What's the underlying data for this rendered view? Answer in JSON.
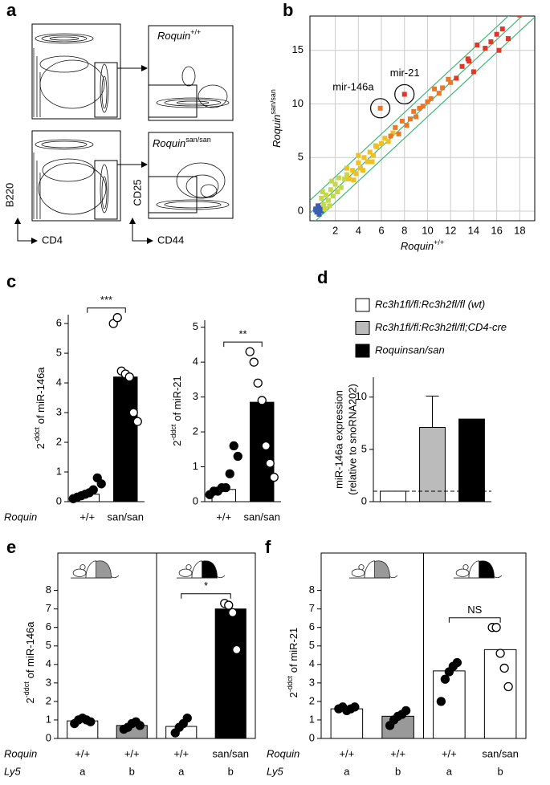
{
  "panel_labels": [
    "a",
    "b",
    "c",
    "d",
    "e",
    "f"
  ],
  "flow": {
    "top_label": {
      "text": "Roquin",
      "sup": "+/+"
    },
    "bottom_label": {
      "text": "Roquin",
      "sup": "san/san"
    },
    "y1": "B220",
    "x1": "CD4",
    "y2": "CD25",
    "x2": "CD44"
  },
  "chart_data": [
    {
      "type": "scatter",
      "xlabel": {
        "text": "Roquin",
        "sup": "+/+"
      },
      "ylabel": {
        "text": "Roquin",
        "sup": "san/san"
      },
      "xlim": [
        -0.2,
        19.3
      ],
      "ylim": [
        -0.9,
        18.2
      ],
      "xticks": [
        2,
        4,
        6,
        8,
        10,
        12,
        14,
        16,
        18
      ],
      "yticks": [
        0,
        5,
        10,
        15
      ],
      "grid": true,
      "series": [
        {
          "color": "#3a5fb0",
          "x": [
            0.3,
            0.5,
            0.6,
            0.4,
            0.7,
            0.5,
            0.8,
            0.3
          ],
          "y": [
            0.2,
            0.0,
            -0.3,
            -0.1,
            0.3,
            0.5,
            0.0,
            0.1
          ]
        },
        {
          "color": "#c4d84a",
          "x": [
            0.8,
            1.0,
            1.2,
            1.4,
            1.6,
            1.8,
            2.0,
            2.2,
            2.5,
            2.8,
            3.0,
            1.1,
            1.5,
            2.3,
            0.9,
            1.7
          ],
          "y": [
            1.2,
            0.6,
            1.5,
            1.0,
            2.0,
            1.4,
            2.5,
            1.8,
            2.2,
            3.0,
            3.4,
            0.2,
            0.5,
            3.1,
            1.8,
            2.8
          ]
        },
        {
          "color": "#f0c020",
          "x": [
            3.2,
            3.5,
            3.8,
            4.0,
            4.2,
            4.5,
            4.8,
            5.0,
            5.3,
            5.6,
            6.0,
            6.3,
            3.6,
            4.4,
            5.2,
            6.6,
            7.0,
            3.0,
            4.0,
            5.5
          ],
          "y": [
            3.0,
            3.8,
            3.5,
            4.5,
            4.0,
            5.0,
            4.6,
            5.5,
            5.2,
            6.0,
            6.3,
            6.8,
            2.9,
            3.8,
            4.6,
            6.5,
            7.3,
            4.0,
            5.2,
            6.1
          ]
        },
        {
          "color": "#e8782a",
          "x": [
            6.8,
            7.2,
            7.5,
            7.8,
            8.2,
            8.5,
            8.8,
            9.0,
            9.3,
            9.6,
            10.0,
            10.3,
            10.6,
            11.0,
            11.3,
            11.8,
            12.0,
            5.9
          ],
          "y": [
            7.0,
            7.8,
            7.2,
            8.4,
            8.0,
            8.6,
            9.3,
            8.8,
            9.6,
            9.8,
            10.2,
            10.5,
            11.4,
            11.0,
            11.5,
            12.3,
            12.0,
            9.6
          ]
        },
        {
          "color": "#e03828",
          "x": [
            8.0,
            12.5,
            13.0,
            13.5,
            14.0,
            14.3,
            15.0,
            15.5,
            16.0,
            16.2,
            16.5,
            17.0,
            18.0,
            13.6
          ],
          "y": [
            10.9,
            12.4,
            13.5,
            14.2,
            13.0,
            15.5,
            15.2,
            15.8,
            16.5,
            15.0,
            17.0,
            16.1,
            18.3,
            14.0
          ]
        }
      ],
      "guide_color": "#3cb878",
      "annotations": [
        {
          "text": "mir-146a",
          "x": 5.9,
          "y": 9.6
        },
        {
          "text": "mir-21",
          "x": 8.0,
          "y": 10.9
        }
      ]
    },
    {
      "type": "bar",
      "ylabel": {
        "base": "2",
        "sup": "-ddct",
        "text": "of miR-146a"
      },
      "ylim": [
        0,
        6.3
      ],
      "yticks": [
        0,
        1,
        2,
        3,
        4,
        5,
        6
      ],
      "values": [
        0.25,
        4.2
      ],
      "colors": [
        "#ffffff",
        "#000000"
      ],
      "points": [
        [
          0.1,
          0.15,
          0.2,
          0.25,
          0.3,
          0.4,
          0.8,
          0.6
        ],
        [
          6.0,
          6.2,
          4.4,
          4.3,
          4.2,
          3.0,
          2.7
        ]
      ],
      "point_colors": [
        "#000000",
        "#ffffff"
      ],
      "significance": "***",
      "rows": [
        {
          "label": "Roquin",
          "values": [
            "+/+",
            "san/san"
          ]
        }
      ]
    },
    {
      "type": "bar",
      "ylabel": {
        "base": "2",
        "sup": "-ddct",
        "text": "of miR-21"
      },
      "ylim": [
        0,
        5.2
      ],
      "yticks": [
        0,
        1,
        2,
        3,
        4,
        5
      ],
      "values": [
        0.35,
        2.85
      ],
      "colors": [
        "#ffffff",
        "#000000"
      ],
      "points": [
        [
          0.2,
          0.3,
          0.3,
          0.4,
          0.4,
          0.8,
          1.6,
          1.3
        ],
        [
          4.3,
          4.0,
          3.4,
          2.9,
          1.6,
          1.1,
          0.7
        ]
      ],
      "point_colors": [
        "#000000",
        "#ffffff"
      ],
      "significance": "**",
      "rows": [
        {
          "values": [
            "+/+",
            "san/san"
          ]
        }
      ]
    },
    {
      "type": "bar",
      "ylabel_lines": [
        "miR-146a expression",
        "(relative to snoRNA202)"
      ],
      "ylim": [
        0,
        11.9
      ],
      "yticks": [
        0,
        5,
        10
      ],
      "reference_line": 1,
      "series": [
        {
          "name": "Rc3h1fl/fl:Rc3h2fl/fl (wt)",
          "color": "#ffffff",
          "value": 1.0,
          "error": 0
        },
        {
          "name": "Rc3h1fl/fl:Rc3h2fl/fl;CD4-cre",
          "color": "#bbbbbb",
          "value": 7.1,
          "error": 3.0
        },
        {
          "name": "Roquinsan/san",
          "color": "#000000",
          "value": 7.9,
          "error": 0
        }
      ]
    },
    {
      "type": "bar",
      "ylabel": {
        "base": "2",
        "sup": "-ddct",
        "text": "of miR-146a"
      },
      "ylim": [
        0,
        8.2
      ],
      "yticks": [
        0,
        1,
        2,
        3,
        4,
        5,
        6,
        7,
        8
      ],
      "values": [
        0.95,
        0.7,
        0.65,
        7.0
      ],
      "colors": [
        "#ffffff",
        "#999999",
        "#ffffff",
        "#000000"
      ],
      "points": [
        [
          0.8,
          1.0,
          1.1,
          1.0,
          0.9
        ],
        [
          0.5,
          0.6,
          0.8,
          0.9,
          0.7
        ],
        [
          0.3,
          0.6,
          0.8,
          1.1
        ],
        [
          7.3,
          7.2,
          6.8,
          4.8
        ]
      ],
      "point_colors": [
        "#000000",
        "#000000",
        "#000000",
        "#ffffff"
      ],
      "significance": "*",
      "rows": [
        {
          "label": "Roquin",
          "values": [
            "+/+",
            "+/+",
            "+/+",
            "san/san"
          ]
        },
        {
          "label": "Ly5",
          "values": [
            "a",
            "b",
            "a",
            "b"
          ]
        }
      ]
    },
    {
      "type": "bar",
      "ylabel": {
        "base": "2",
        "sup": "-ddct",
        "text": "of miR-21"
      },
      "ylim": [
        0,
        8.2
      ],
      "yticks": [
        0,
        1,
        2,
        3,
        4,
        5,
        6,
        7,
        8
      ],
      "values": [
        1.6,
        1.2,
        3.65,
        4.8
      ],
      "colors": [
        "#ffffff",
        "#999999",
        "#ffffff",
        "#ffffff"
      ],
      "points": [
        [
          1.6,
          1.7,
          1.5,
          1.6,
          1.7
        ],
        [
          0.7,
          1.0,
          1.2,
          1.3,
          1.5
        ],
        [
          2.0,
          3.2,
          3.6,
          3.9,
          4.1
        ],
        [
          6.0,
          6.0,
          4.6,
          3.8,
          2.8
        ]
      ],
      "point_colors": [
        "#000000",
        "#000000",
        "#000000",
        "#ffffff"
      ],
      "significance": "NS",
      "rows": [
        {
          "label": "Roquin",
          "values": [
            "+/+",
            "+/+",
            "+/+",
            "san/san"
          ]
        },
        {
          "label": "Ly5",
          "values": [
            "a",
            "b",
            "a",
            "b"
          ]
        }
      ]
    }
  ]
}
